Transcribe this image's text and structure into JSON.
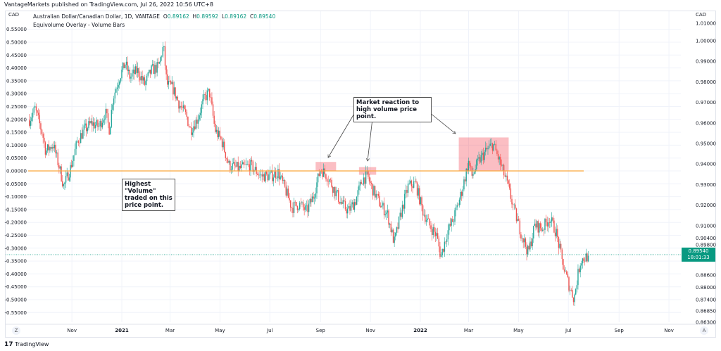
{
  "publisher_line": "VantageMarkets published on TradingView.com, Jul 26, 2022 10:56 UTC+8",
  "legend": {
    "symbol": "Australian Dollar/Canadian Dollar, 1D, VANTAGE",
    "o_label": "O",
    "o": "0.89162",
    "h_label": "H",
    "h": "0.89592",
    "l_label": "L",
    "l": "0.89162",
    "c_label": "C",
    "c": "0.89540",
    "indicator": "Equivolume Overlay - Volume Bars"
  },
  "left_axis_currency": "CAD",
  "right_axis_currency": "CAD",
  "current_price": {
    "value": "0.89540",
    "countdown": "18:01:33"
  },
  "annotations": {
    "market_reaction": "Market reaction to high volume price point.",
    "highest_volume": "Highest \"Volume\" traded on this price point."
  },
  "buttons": {
    "auto_scale": "A",
    "zoom": "Z"
  },
  "branding": {
    "logo_mark": "17",
    "name": "TradingView"
  },
  "colors": {
    "up": "#26a69a",
    "down": "#ef5350",
    "level_line": "#f9a63c",
    "highlight": "#f23645",
    "price_tag": "#089981"
  },
  "chart_data": {
    "type": "candlestick",
    "title": "Australian Dollar/Canadian Dollar, 1D, VANTAGE",
    "xlabel": "",
    "ylabel": "",
    "grid": true,
    "right_axis_ticks": [
      "1.01000",
      "1.00000",
      "0.99000",
      "0.98000",
      "0.97000",
      "0.96000",
      "0.95000",
      "0.94000",
      "0.93000",
      "0.92000",
      "0.91000",
      "0.90400",
      "0.89800",
      "0.88600",
      "0.88000",
      "0.87400",
      "0.86850",
      "0.86300"
    ],
    "left_axis_ticks": [
      "0.55000",
      "0.50000",
      "0.45000",
      "0.40000",
      "0.35000",
      "0.30000",
      "0.25000",
      "0.20000",
      "0.15000",
      "0.10000",
      "0.05000",
      "0.00000",
      "-0.05000",
      "-0.10000",
      "-0.15000",
      "-0.20000",
      "-0.25000",
      "-0.30000",
      "-0.35000",
      "-0.40000",
      "-0.45000",
      "-0.50000",
      "-0.55000"
    ],
    "x_ticks": [
      {
        "label": "Nov",
        "date": "2020-11-01"
      },
      {
        "label": "2021",
        "date": "2021-01-01"
      },
      {
        "label": "Mar",
        "date": "2021-03-01"
      },
      {
        "label": "May",
        "date": "2021-05-01"
      },
      {
        "label": "Jul",
        "date": "2021-07-01"
      },
      {
        "label": "Sep",
        "date": "2021-09-01"
      },
      {
        "label": "Nov",
        "date": "2021-11-01"
      },
      {
        "label": "2022",
        "date": "2022-01-01"
      },
      {
        "label": "Mar",
        "date": "2022-03-01"
      },
      {
        "label": "May",
        "date": "2022-05-01"
      },
      {
        "label": "Jul",
        "date": "2022-07-01"
      },
      {
        "label": "Sep",
        "date": "2022-09-01"
      },
      {
        "label": "Nov",
        "date": "2022-11-01"
      }
    ],
    "high_volume_level_left_axis": 0.0,
    "close_path": [
      [
        "2020-09-10",
        0.9616
      ],
      [
        "2020-09-17",
        0.9668
      ],
      [
        "2020-09-26",
        0.9548
      ],
      [
        "2020-09-30",
        0.9462
      ],
      [
        "2020-10-09",
        0.9497
      ],
      [
        "2020-10-17",
        0.9377
      ],
      [
        "2020-10-22",
        0.9291
      ],
      [
        "2020-10-30",
        0.9377
      ],
      [
        "2020-11-08",
        0.9514
      ],
      [
        "2020-11-16",
        0.9565
      ],
      [
        "2020-11-25",
        0.9599
      ],
      [
        "2020-12-04",
        0.9582
      ],
      [
        "2020-12-12",
        0.9651
      ],
      [
        "2020-12-17",
        0.9565
      ],
      [
        "2020-12-21",
        0.9719
      ],
      [
        "2020-12-29",
        0.9822
      ],
      [
        "2021-01-05",
        0.989
      ],
      [
        "2021-01-11",
        0.9822
      ],
      [
        "2021-01-20",
        0.9856
      ],
      [
        "2021-01-29",
        0.9788
      ],
      [
        "2021-02-06",
        0.9856
      ],
      [
        "2021-02-15",
        0.9873
      ],
      [
        "2021-02-21",
        0.9976
      ],
      [
        "2021-02-25",
        0.9788
      ],
      [
        "2021-03-04",
        0.9771
      ],
      [
        "2021-03-13",
        0.9685
      ],
      [
        "2021-03-21",
        0.9634
      ],
      [
        "2021-03-26",
        0.9565
      ],
      [
        "2021-04-03",
        0.9616
      ],
      [
        "2021-04-12",
        0.9719
      ],
      [
        "2021-04-18",
        0.9753
      ],
      [
        "2021-04-25",
        0.9565
      ],
      [
        "2021-05-03",
        0.9514
      ],
      [
        "2021-05-12",
        0.9394
      ],
      [
        "2021-05-25",
        0.9377
      ],
      [
        "2021-06-07",
        0.9394
      ],
      [
        "2021-06-20",
        0.9342
      ],
      [
        "2021-07-03",
        0.9342
      ],
      [
        "2021-07-11",
        0.936
      ],
      [
        "2021-07-20",
        0.9274
      ],
      [
        "2021-07-28",
        0.9188
      ],
      [
        "2021-08-06",
        0.9205
      ],
      [
        "2021-08-15",
        0.9171
      ],
      [
        "2021-08-23",
        0.924
      ],
      [
        "2021-09-01",
        0.9377
      ],
      [
        "2021-09-09",
        0.9342
      ],
      [
        "2021-09-18",
        0.9274
      ],
      [
        "2021-09-27",
        0.9205
      ],
      [
        "2021-10-05",
        0.9171
      ],
      [
        "2021-10-14",
        0.9223
      ],
      [
        "2021-10-22",
        0.9325
      ],
      [
        "2021-10-28",
        0.9342
      ],
      [
        "2021-11-04",
        0.9274
      ],
      [
        "2021-11-13",
        0.9205
      ],
      [
        "2021-11-22",
        0.9154
      ],
      [
        "2021-11-30",
        0.9017
      ],
      [
        "2021-12-09",
        0.9171
      ],
      [
        "2021-12-17",
        0.9291
      ],
      [
        "2021-12-26",
        0.9308
      ],
      [
        "2022-01-04",
        0.9171
      ],
      [
        "2022-01-12",
        0.9103
      ],
      [
        "2022-01-21",
        0.9051
      ],
      [
        "2022-01-26",
        0.8949
      ],
      [
        "2022-02-03",
        0.9068
      ],
      [
        "2022-02-11",
        0.9137
      ],
      [
        "2022-02-20",
        0.9257
      ],
      [
        "2022-03-01",
        0.9411
      ],
      [
        "2022-03-05",
        0.9342
      ],
      [
        "2022-03-13",
        0.9411
      ],
      [
        "2022-03-22",
        0.9462
      ],
      [
        "2022-03-31",
        0.9497
      ],
      [
        "2022-04-08",
        0.9411
      ],
      [
        "2022-04-17",
        0.9308
      ],
      [
        "2022-04-26",
        0.9171
      ],
      [
        "2022-05-04",
        0.9068
      ],
      [
        "2022-05-13",
        0.8966
      ],
      [
        "2022-05-21",
        0.9103
      ],
      [
        "2022-05-30",
        0.9086
      ],
      [
        "2022-06-08",
        0.9137
      ],
      [
        "2022-06-16",
        0.9068
      ],
      [
        "2022-06-25",
        0.8897
      ],
      [
        "2022-07-03",
        0.8795
      ],
      [
        "2022-07-08",
        0.8743
      ],
      [
        "2022-07-12",
        0.8846
      ],
      [
        "2022-07-16",
        0.8932
      ],
      [
        "2022-07-26",
        0.8954
      ]
    ],
    "highlight_zones": [
      {
        "from": "2021-08-26",
        "to": "2021-09-20",
        "left_axis_top": 0.035,
        "left_axis_bottom": 0.0
      },
      {
        "from": "2021-10-18",
        "to": "2021-11-08",
        "left_axis_top": 0.015,
        "left_axis_bottom": -0.015
      },
      {
        "from": "2022-02-17",
        "to": "2022-04-19",
        "left_axis_top": 0.13,
        "left_axis_bottom": 0.0
      }
    ]
  }
}
